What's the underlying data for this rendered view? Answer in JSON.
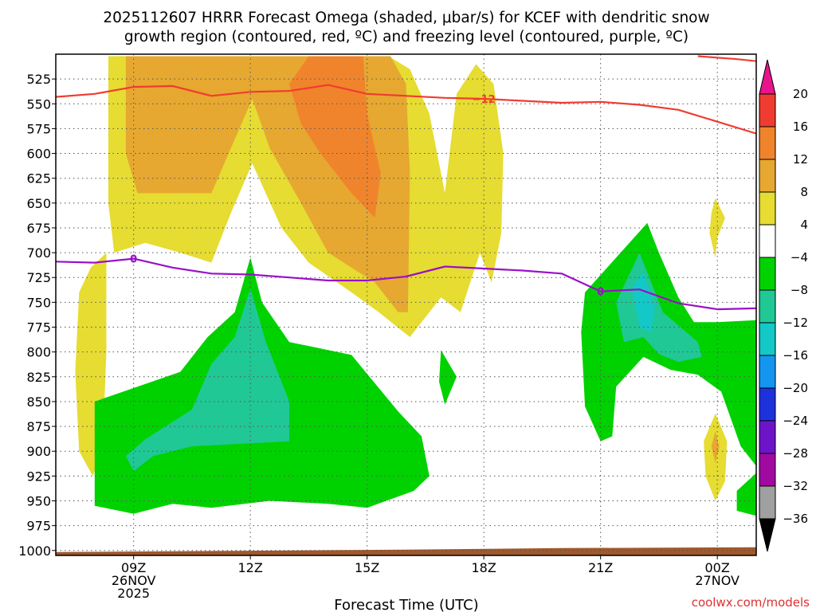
{
  "chart_data": {
    "type": "time-height contour (shaded + contoured)",
    "title_lines": [
      "2025112607 HRRR Forecast Omega (shaded, μbar/s) for KCEF with dendritic snow",
      "growth region (contoured, red, ºC) and freezing level (contoured, purple, ºC)"
    ],
    "xlabel": "Forecast Time (UTC)",
    "x_ticks": [
      {
        "hour": 9,
        "lines": [
          "09Z",
          "26NOV",
          "2025"
        ]
      },
      {
        "hour": 12,
        "lines": [
          "12Z"
        ]
      },
      {
        "hour": 15,
        "lines": [
          "15Z"
        ]
      },
      {
        "hour": 18,
        "lines": [
          "18Z"
        ]
      },
      {
        "hour": 21,
        "lines": [
          "21Z"
        ]
      },
      {
        "hour": 24,
        "lines": [
          "00Z",
          "27NOV"
        ]
      }
    ],
    "x_range_hours": [
      7,
      25
    ],
    "y_ticks_hpa": [
      525,
      550,
      575,
      600,
      625,
      650,
      675,
      700,
      725,
      750,
      775,
      800,
      825,
      850,
      875,
      900,
      925,
      950,
      975,
      1000
    ],
    "y_range_hpa": [
      500,
      1005
    ],
    "colorbar": {
      "labels": [
        "20",
        "16",
        "12",
        "8",
        "4",
        "−4",
        "−8",
        "−12",
        "−16",
        "−20",
        "−24",
        "−28",
        "−32",
        "−36"
      ],
      "bins": [
        {
          "range": ">20",
          "color": "#e8148c"
        },
        {
          "range": "16 to 20",
          "color": "#f03c30"
        },
        {
          "range": "12 to 16",
          "color": "#f0842c"
        },
        {
          "range": "8 to 12",
          "color": "#e6a830"
        },
        {
          "range": "4 to 8",
          "color": "#e6dc32"
        },
        {
          "range": "-4 to 4",
          "color": "#ffffff"
        },
        {
          "range": "-8 to -4",
          "color": "#00d200"
        },
        {
          "range": "-12 to -8",
          "color": "#20c896"
        },
        {
          "range": "-16 to -12",
          "color": "#14c8c8"
        },
        {
          "range": "-20 to -16",
          "color": "#1496f0"
        },
        {
          "range": "-24 to -20",
          "color": "#1e32dc"
        },
        {
          "range": "-28 to -24",
          "color": "#6e14c8"
        },
        {
          "range": "-32 to -28",
          "color": "#a00aa0"
        },
        {
          "range": "-36 to -32",
          "color": "#a0a0a0"
        },
        {
          "range": "<-36",
          "color": "#000000"
        }
      ]
    },
    "contours": [
      {
        "name": "dendritic -12C isotherm",
        "label": "−12",
        "color": "#f03c30",
        "points_hour_hpa": [
          [
            7.0,
            543
          ],
          [
            8.0,
            540
          ],
          [
            9.0,
            533
          ],
          [
            10.0,
            532
          ],
          [
            11.0,
            542
          ],
          [
            12.0,
            538
          ],
          [
            13.0,
            537
          ],
          [
            14.0,
            531
          ],
          [
            15.0,
            540
          ],
          [
            16.0,
            542
          ],
          [
            17.0,
            544
          ],
          [
            18.0,
            545
          ],
          [
            19.0,
            547
          ],
          [
            20.0,
            549
          ],
          [
            21.0,
            548
          ],
          [
            22.0,
            551
          ],
          [
            23.0,
            556
          ],
          [
            24.0,
            568
          ],
          [
            25.0,
            580
          ]
        ]
      },
      {
        "name": "upper -12C isotherm segment",
        "label": "",
        "color": "#f03c30",
        "points_hour_hpa": [
          [
            23.5,
            502
          ],
          [
            24.5,
            505
          ],
          [
            25.0,
            507
          ]
        ]
      },
      {
        "name": "freezing level 0C",
        "label": "0",
        "color": "#9a10c8",
        "points_hour_hpa": [
          [
            7.0,
            709
          ],
          [
            8.0,
            710
          ],
          [
            9.0,
            706
          ],
          [
            10.0,
            715
          ],
          [
            11.0,
            721
          ],
          [
            12.0,
            722
          ],
          [
            13.0,
            725
          ],
          [
            14.0,
            728
          ],
          [
            15.0,
            728
          ],
          [
            16.0,
            724
          ],
          [
            17.0,
            714
          ],
          [
            18.0,
            716
          ],
          [
            19.0,
            718
          ],
          [
            20.0,
            721
          ],
          [
            21.0,
            739
          ],
          [
            22.0,
            737
          ],
          [
            23.0,
            751
          ],
          [
            24.0,
            757
          ],
          [
            25.0,
            756
          ]
        ]
      }
    ],
    "shaded_regions": [
      {
        "name": "omega 4 to 8 large",
        "value_range": "4 to 8",
        "color": "#e6dc32",
        "points_hour_hpa": [
          [
            8.35,
            502
          ],
          [
            15.55,
            502
          ],
          [
            16.1,
            515
          ],
          [
            16.6,
            560
          ],
          [
            17.0,
            640
          ],
          [
            17.3,
            540
          ],
          [
            17.8,
            510
          ],
          [
            18.25,
            530
          ],
          [
            18.5,
            600
          ],
          [
            18.45,
            680
          ],
          [
            18.2,
            730
          ],
          [
            17.9,
            700
          ],
          [
            17.4,
            760
          ],
          [
            16.9,
            745
          ],
          [
            16.1,
            785
          ],
          [
            15.3,
            760
          ],
          [
            14.6,
            740
          ],
          [
            13.5,
            710
          ],
          [
            12.8,
            675
          ],
          [
            12.05,
            610
          ],
          [
            11.5,
            660
          ],
          [
            11.0,
            710
          ],
          [
            10.2,
            700
          ],
          [
            9.3,
            690
          ],
          [
            8.5,
            700
          ],
          [
            8.35,
            650
          ]
        ]
      },
      {
        "name": "omega 4 to 8 west band",
        "value_range": "4 to 8",
        "color": "#e6dc32",
        "points_hour_hpa": [
          [
            7.9,
            715
          ],
          [
            8.3,
            700
          ],
          [
            8.3,
            800
          ],
          [
            8.2,
            900
          ],
          [
            7.95,
            925
          ],
          [
            7.6,
            900
          ],
          [
            7.5,
            820
          ],
          [
            7.6,
            740
          ]
        ]
      },
      {
        "name": "omega 4 to 8 east blob",
        "value_range": "4 to 8",
        "color": "#e6dc32",
        "points_hour_hpa": [
          [
            23.95,
            645
          ],
          [
            24.2,
            665
          ],
          [
            24.0,
            685
          ],
          [
            23.95,
            705
          ],
          [
            23.8,
            680
          ],
          [
            23.85,
            660
          ]
        ]
      },
      {
        "name": "omega 4 to 8 small blob",
        "value_range": "4 to 8",
        "color": "#e6dc32",
        "points_hour_hpa": [
          [
            23.95,
            862
          ],
          [
            24.25,
            890
          ],
          [
            24.2,
            930
          ],
          [
            23.95,
            950
          ],
          [
            23.7,
            925
          ],
          [
            23.65,
            890
          ]
        ]
      },
      {
        "name": "omega 8 to 12",
        "value_range": "8 to 12",
        "color": "#e6a830",
        "points_hour_hpa": [
          [
            8.8,
            502
          ],
          [
            15.6,
            502
          ],
          [
            16.0,
            530
          ],
          [
            16.1,
            620
          ],
          [
            16.05,
            760
          ],
          [
            15.8,
            760
          ],
          [
            15.2,
            730
          ],
          [
            14.0,
            700
          ],
          [
            13.3,
            650
          ],
          [
            12.5,
            595
          ],
          [
            12.05,
            545
          ],
          [
            11.0,
            640
          ],
          [
            10.0,
            640
          ],
          [
            9.1,
            640
          ],
          [
            8.8,
            600
          ]
        ]
      },
      {
        "name": "omega 8 to 12 small",
        "value_range": "8 to 12",
        "color": "#e6a830",
        "points_hour_hpa": [
          [
            23.95,
            880
          ],
          [
            24.05,
            895
          ],
          [
            23.95,
            912
          ],
          [
            23.85,
            895
          ]
        ]
      },
      {
        "name": "omega 12 to 16",
        "value_range": "12 to 16",
        "color": "#f0842c",
        "points_hour_hpa": [
          [
            13.5,
            502
          ],
          [
            14.9,
            502
          ],
          [
            15.0,
            560
          ],
          [
            15.35,
            620
          ],
          [
            15.2,
            665
          ],
          [
            14.6,
            640
          ],
          [
            13.8,
            600
          ],
          [
            13.3,
            570
          ],
          [
            13.0,
            530
          ]
        ]
      },
      {
        "name": "omega -4 to -8 main",
        "value_range": "-8 to -4",
        "color": "#00d200",
        "points_hour_hpa": [
          [
            8.0,
            850
          ],
          [
            10.2,
            820
          ],
          [
            10.9,
            785
          ],
          [
            11.6,
            760
          ],
          [
            12.0,
            705
          ],
          [
            12.3,
            750
          ],
          [
            13.0,
            790
          ],
          [
            14.6,
            803
          ],
          [
            15.8,
            860
          ],
          [
            16.4,
            885
          ],
          [
            16.6,
            925
          ],
          [
            16.2,
            940
          ],
          [
            15.0,
            957
          ],
          [
            14.0,
            953
          ],
          [
            12.5,
            950
          ],
          [
            11.0,
            957
          ],
          [
            10.0,
            953
          ],
          [
            9.0,
            963
          ],
          [
            8.0,
            955
          ]
        ]
      },
      {
        "name": "omega -4 to -8 small",
        "value_range": "-8 to -4",
        "color": "#00d200",
        "points_hour_hpa": [
          [
            16.9,
            798
          ],
          [
            17.3,
            825
          ],
          [
            17.0,
            853
          ],
          [
            16.85,
            830
          ]
        ]
      },
      {
        "name": "omega -4 to -8 east",
        "value_range": "-8 to -4",
        "color": "#00d200",
        "points_hour_hpa": [
          [
            20.6,
            740
          ],
          [
            21.4,
            705
          ],
          [
            22.2,
            670
          ],
          [
            22.5,
            700
          ],
          [
            23.0,
            745
          ],
          [
            23.4,
            770
          ],
          [
            24.0,
            770
          ],
          [
            25.0,
            768
          ],
          [
            25.0,
            915
          ],
          [
            24.6,
            895
          ],
          [
            24.1,
            840
          ],
          [
            23.5,
            823
          ],
          [
            22.8,
            818
          ],
          [
            22.1,
            805
          ],
          [
            21.4,
            835
          ],
          [
            21.3,
            885
          ],
          [
            21.0,
            890
          ],
          [
            20.6,
            855
          ],
          [
            20.5,
            780
          ]
        ]
      },
      {
        "name": "omega -4 to -8 corner",
        "value_range": "-8 to -4",
        "color": "#00d200",
        "points_hour_hpa": [
          [
            25.0,
            922
          ],
          [
            25.0,
            965
          ],
          [
            24.5,
            960
          ],
          [
            24.5,
            940
          ]
        ]
      },
      {
        "name": "omega -8 to -12 main",
        "value_range": "-12 to -8",
        "color": "#20c896",
        "points_hour_hpa": [
          [
            8.8,
            905
          ],
          [
            9.3,
            888
          ],
          [
            10.5,
            858
          ],
          [
            11.0,
            812
          ],
          [
            11.6,
            785
          ],
          [
            12.0,
            736
          ],
          [
            12.4,
            790
          ],
          [
            13.0,
            850
          ],
          [
            13.0,
            890
          ],
          [
            10.5,
            895
          ],
          [
            9.5,
            905
          ],
          [
            9.0,
            920
          ]
        ]
      },
      {
        "name": "omega -8 to -12 east",
        "value_range": "-12 to -8",
        "color": "#20c896",
        "points_hour_hpa": [
          [
            21.4,
            750
          ],
          [
            22.0,
            700
          ],
          [
            22.6,
            760
          ],
          [
            23.5,
            790
          ],
          [
            23.6,
            805
          ],
          [
            23.0,
            810
          ],
          [
            22.5,
            802
          ],
          [
            22.1,
            785
          ],
          [
            21.6,
            790
          ]
        ]
      },
      {
        "name": "omega -12 to -16 east",
        "value_range": "-16 to -12",
        "color": "#14c8c8",
        "points_hour_hpa": [
          [
            21.8,
            735
          ],
          [
            22.1,
            720
          ],
          [
            22.4,
            755
          ],
          [
            22.3,
            780
          ],
          [
            22.0,
            775
          ]
        ]
      }
    ],
    "ground_level_hpa": 1000,
    "ground_color": "#a0582c"
  },
  "credit": "coolwx.com/models"
}
